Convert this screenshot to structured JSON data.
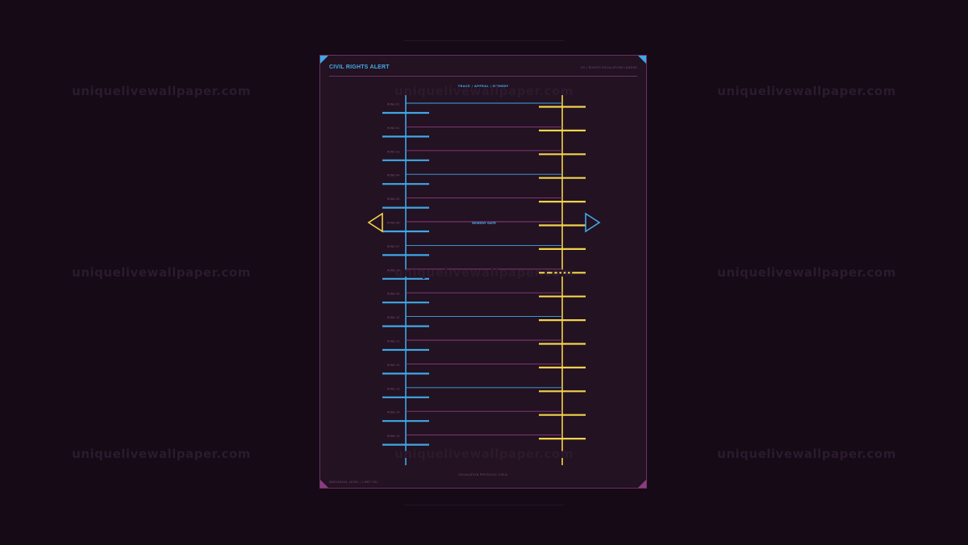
{
  "watermark": "uniquelivewallpaper.com",
  "poster": {
    "title": "CIVIL RIGHTS ALERT",
    "ref": "05 / RIGHTS ESCALATION LADDER",
    "subtitle": "TRACE / APPEAL / REMEDY",
    "center_label": "REMEDY GATE",
    "footer_center": "ESCALATION PROTOCOL FIELD",
    "footer_left": "INDIVIDUAL LEVEL / LIMIT 001"
  },
  "ladder": {
    "rungs": [
      {
        "label": "RUNG 01",
        "link": "blue"
      },
      {
        "label": "RUNG 02",
        "link": "pink"
      },
      {
        "label": "RUNG 03",
        "link": "pink"
      },
      {
        "label": "RUNG 04",
        "link": "blue"
      },
      {
        "label": "RUNG 05",
        "link": "pink"
      },
      {
        "label": "RUNG 06",
        "link": "pink"
      },
      {
        "label": "RUNG 07",
        "link": "blue"
      },
      {
        "label": "RUNG 08",
        "link": "pink"
      },
      {
        "label": "RUNG 09",
        "link": "pink"
      },
      {
        "label": "RUNG 10",
        "link": "blue"
      },
      {
        "label": "RUNG 11",
        "link": "pink"
      },
      {
        "label": "RUNG 12",
        "link": "pink"
      },
      {
        "label": "RUNG 13",
        "link": "blue"
      },
      {
        "label": "RUNG 14",
        "link": "pink"
      },
      {
        "label": "RUNG 15",
        "link": "pink"
      }
    ]
  },
  "colors": {
    "background": "#150a16",
    "panel": "#231222",
    "frame": "#6c2f62",
    "blue": "#3fa7e6",
    "yellow": "#f2d34b",
    "pink": "#8b3c80",
    "muted_text": "#7e4a78"
  }
}
